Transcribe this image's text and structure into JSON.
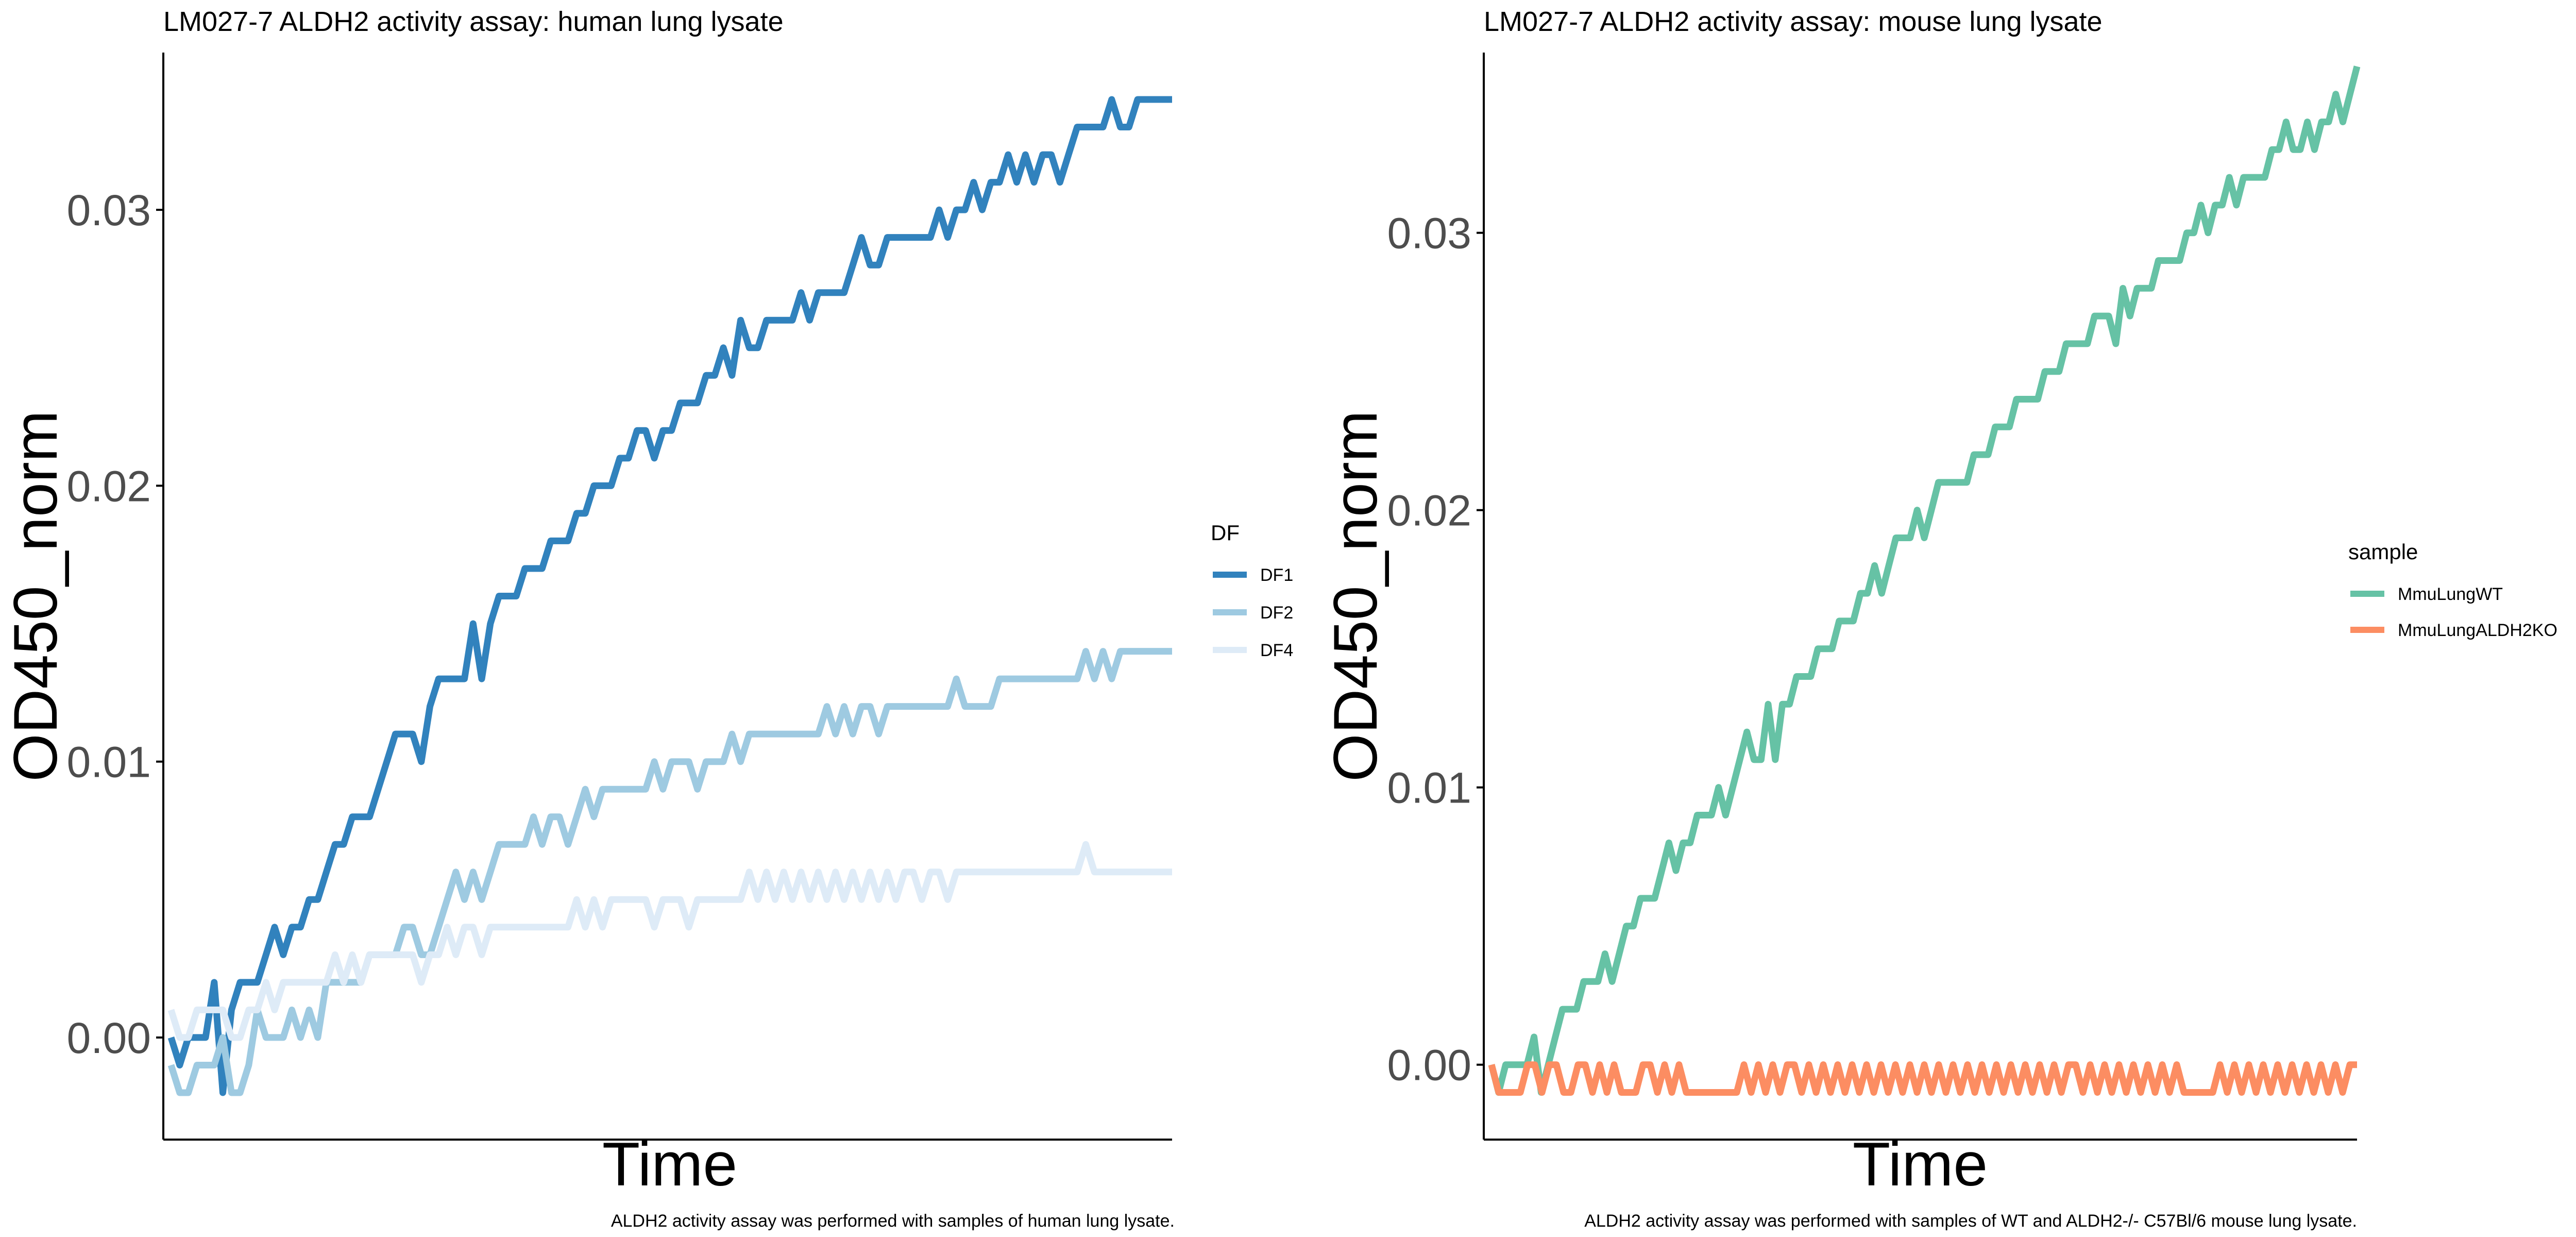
{
  "chart_data": [
    {
      "type": "line",
      "title": "LM027-7 ALDH2 activity assay: human lung lysate",
      "xlabel": "Time",
      "ylabel": "OD450_norm",
      "caption": "ALDH2 activity assay was performed with samples of human lung lysate.",
      "ylim": [
        -0.0037,
        0.0357
      ],
      "yticks": [
        0.0,
        0.01,
        0.02,
        0.03
      ],
      "ytick_labels": [
        "0.00",
        "0.01",
        "0.02",
        "0.03"
      ],
      "grid": false,
      "x_tick_labels_shown": false,
      "legend": {
        "title": "DF",
        "placement": "right"
      },
      "series": [
        {
          "name": "DF1",
          "color": "#3182bd",
          "values": [
            0.0,
            -0.001,
            0.0,
            0.0,
            0.0,
            0.002,
            -0.002,
            0.001,
            0.002,
            0.002,
            0.002,
            0.003,
            0.004,
            0.003,
            0.004,
            0.004,
            0.005,
            0.005,
            0.006,
            0.007,
            0.007,
            0.008,
            0.008,
            0.008,
            0.009,
            0.01,
            0.011,
            0.011,
            0.011,
            0.01,
            0.012,
            0.013,
            0.013,
            0.013,
            0.013,
            0.015,
            0.013,
            0.015,
            0.016,
            0.016,
            0.016,
            0.017,
            0.017,
            0.017,
            0.018,
            0.018,
            0.018,
            0.019,
            0.019,
            0.02,
            0.02,
            0.02,
            0.021,
            0.021,
            0.022,
            0.022,
            0.021,
            0.022,
            0.022,
            0.023,
            0.023,
            0.023,
            0.024,
            0.024,
            0.025,
            0.024,
            0.026,
            0.025,
            0.025,
            0.026,
            0.026,
            0.026,
            0.026,
            0.027,
            0.026,
            0.027,
            0.027,
            0.027,
            0.027,
            0.028,
            0.029,
            0.028,
            0.028,
            0.029,
            0.029,
            0.029,
            0.029,
            0.029,
            0.029,
            0.03,
            0.029,
            0.03,
            0.03,
            0.031,
            0.03,
            0.031,
            0.031,
            0.032,
            0.031,
            0.032,
            0.031,
            0.032,
            0.032,
            0.031,
            0.032,
            0.033,
            0.033,
            0.033,
            0.033,
            0.034,
            0.033,
            0.033,
            0.034,
            0.034,
            0.034,
            0.034,
            0.034
          ]
        },
        {
          "name": "DF2",
          "color": "#9ecae1",
          "values": [
            -0.001,
            -0.002,
            -0.002,
            -0.001,
            -0.001,
            -0.001,
            0.0,
            -0.002,
            -0.002,
            -0.001,
            0.001,
            0.0,
            0.0,
            0.0,
            0.001,
            0.0,
            0.001,
            0.0,
            0.002,
            0.002,
            0.002,
            0.002,
            0.002,
            0.003,
            0.003,
            0.003,
            0.003,
            0.004,
            0.004,
            0.003,
            0.003,
            0.004,
            0.005,
            0.006,
            0.005,
            0.006,
            0.005,
            0.006,
            0.007,
            0.007,
            0.007,
            0.007,
            0.008,
            0.007,
            0.008,
            0.008,
            0.007,
            0.008,
            0.009,
            0.008,
            0.009,
            0.009,
            0.009,
            0.009,
            0.009,
            0.009,
            0.01,
            0.009,
            0.01,
            0.01,
            0.01,
            0.009,
            0.01,
            0.01,
            0.01,
            0.011,
            0.01,
            0.011,
            0.011,
            0.011,
            0.011,
            0.011,
            0.011,
            0.011,
            0.011,
            0.011,
            0.012,
            0.011,
            0.012,
            0.011,
            0.012,
            0.012,
            0.011,
            0.012,
            0.012,
            0.012,
            0.012,
            0.012,
            0.012,
            0.012,
            0.012,
            0.013,
            0.012,
            0.012,
            0.012,
            0.012,
            0.013,
            0.013,
            0.013,
            0.013,
            0.013,
            0.013,
            0.013,
            0.013,
            0.013,
            0.013,
            0.014,
            0.013,
            0.014,
            0.013,
            0.014,
            0.014,
            0.014,
            0.014,
            0.014,
            0.014,
            0.014
          ]
        },
        {
          "name": "DF4",
          "color": "#deebf7",
          "values": [
            0.001,
            0.0,
            0.0,
            0.001,
            0.001,
            0.001,
            0.001,
            0.0,
            0.0,
            0.001,
            0.001,
            0.002,
            0.001,
            0.002,
            0.002,
            0.002,
            0.002,
            0.002,
            0.002,
            0.003,
            0.002,
            0.003,
            0.002,
            0.003,
            0.003,
            0.003,
            0.003,
            0.003,
            0.003,
            0.002,
            0.003,
            0.003,
            0.004,
            0.003,
            0.004,
            0.004,
            0.003,
            0.004,
            0.004,
            0.004,
            0.004,
            0.004,
            0.004,
            0.004,
            0.004,
            0.004,
            0.004,
            0.005,
            0.004,
            0.005,
            0.004,
            0.005,
            0.005,
            0.005,
            0.005,
            0.005,
            0.004,
            0.005,
            0.005,
            0.005,
            0.004,
            0.005,
            0.005,
            0.005,
            0.005,
            0.005,
            0.005,
            0.006,
            0.005,
            0.006,
            0.005,
            0.006,
            0.005,
            0.006,
            0.005,
            0.006,
            0.005,
            0.006,
            0.005,
            0.006,
            0.005,
            0.006,
            0.005,
            0.006,
            0.005,
            0.006,
            0.006,
            0.005,
            0.006,
            0.006,
            0.005,
            0.006,
            0.006,
            0.006,
            0.006,
            0.006,
            0.006,
            0.006,
            0.006,
            0.006,
            0.006,
            0.006,
            0.006,
            0.006,
            0.006,
            0.006,
            0.007,
            0.006,
            0.006,
            0.006,
            0.006,
            0.006,
            0.006,
            0.006,
            0.006,
            0.006,
            0.006
          ]
        }
      ]
    },
    {
      "type": "line",
      "title": "LM027-7 ALDH2 activity assay: mouse lung lysate",
      "xlabel": "Time",
      "ylabel": "OD450_norm",
      "caption": "ALDH2 activity assay was performed with samples of WT and ALDH2-/- C57Bl/6 mouse lung lysate.",
      "ylim": [
        -0.0027,
        0.0365
      ],
      "yticks": [
        0.0,
        0.01,
        0.02,
        0.03
      ],
      "ytick_labels": [
        "0.00",
        "0.01",
        "0.02",
        "0.03"
      ],
      "grid": false,
      "x_tick_labels_shown": false,
      "legend": {
        "title": "sample",
        "placement": "right"
      },
      "series": [
        {
          "name": "MmuLungWT",
          "color": "#66c2a5",
          "values": [
            0.0,
            -0.001,
            0.0,
            0.0,
            0.0,
            0.0,
            0.001,
            -0.001,
            0.0,
            0.001,
            0.002,
            0.002,
            0.002,
            0.003,
            0.003,
            0.003,
            0.004,
            0.003,
            0.004,
            0.005,
            0.005,
            0.006,
            0.006,
            0.006,
            0.007,
            0.008,
            0.007,
            0.008,
            0.008,
            0.009,
            0.009,
            0.009,
            0.01,
            0.009,
            0.01,
            0.011,
            0.012,
            0.011,
            0.011,
            0.013,
            0.011,
            0.013,
            0.013,
            0.014,
            0.014,
            0.014,
            0.015,
            0.015,
            0.015,
            0.016,
            0.016,
            0.016,
            0.017,
            0.017,
            0.018,
            0.017,
            0.018,
            0.019,
            0.019,
            0.019,
            0.02,
            0.019,
            0.02,
            0.021,
            0.021,
            0.021,
            0.021,
            0.021,
            0.022,
            0.022,
            0.022,
            0.023,
            0.023,
            0.023,
            0.024,
            0.024,
            0.024,
            0.024,
            0.025,
            0.025,
            0.025,
            0.026,
            0.026,
            0.026,
            0.026,
            0.027,
            0.027,
            0.027,
            0.026,
            0.028,
            0.027,
            0.028,
            0.028,
            0.028,
            0.029,
            0.029,
            0.029,
            0.029,
            0.03,
            0.03,
            0.031,
            0.03,
            0.031,
            0.031,
            0.032,
            0.031,
            0.032,
            0.032,
            0.032,
            0.032,
            0.033,
            0.033,
            0.034,
            0.033,
            0.033,
            0.034,
            0.033,
            0.034,
            0.034,
            0.035,
            0.034,
            0.035,
            0.036
          ]
        },
        {
          "name": "MmuLungALDH2KO",
          "color": "#fc8d62",
          "values": [
            0.0,
            -0.001,
            -0.001,
            -0.001,
            -0.001,
            0.0,
            0.0,
            -0.001,
            0.0,
            0.0,
            -0.001,
            -0.001,
            0.0,
            0.0,
            -0.001,
            0.0,
            -0.001,
            0.0,
            -0.001,
            -0.001,
            -0.001,
            0.0,
            0.0,
            -0.001,
            0.0,
            -0.001,
            0.0,
            -0.001,
            -0.001,
            -0.001,
            -0.001,
            -0.001,
            -0.001,
            -0.001,
            -0.001,
            0.0,
            -0.001,
            0.0,
            -0.001,
            0.0,
            -0.001,
            0.0,
            0.0,
            -0.001,
            0.0,
            -0.001,
            0.0,
            -0.001,
            0.0,
            -0.001,
            0.0,
            -0.001,
            0.0,
            -0.001,
            0.0,
            -0.001,
            0.0,
            -0.001,
            0.0,
            -0.001,
            0.0,
            -0.001,
            0.0,
            -0.001,
            0.0,
            -0.001,
            0.0,
            -0.001,
            0.0,
            -0.001,
            0.0,
            -0.001,
            0.0,
            -0.001,
            0.0,
            -0.001,
            0.0,
            -0.001,
            0.0,
            -0.001,
            0.0,
            0.0,
            -0.001,
            0.0,
            -0.001,
            0.0,
            -0.001,
            0.0,
            -0.001,
            0.0,
            -0.001,
            0.0,
            -0.001,
            0.0,
            -0.001,
            0.0,
            -0.001,
            -0.001,
            -0.001,
            -0.001,
            -0.001,
            0.0,
            -0.001,
            0.0,
            -0.001,
            0.0,
            -0.001,
            0.0,
            -0.001,
            0.0,
            -0.001,
            0.0,
            -0.001,
            0.0,
            -0.001,
            0.0,
            -0.001,
            0.0,
            -0.001,
            0.0,
            0.0
          ]
        }
      ]
    }
  ]
}
